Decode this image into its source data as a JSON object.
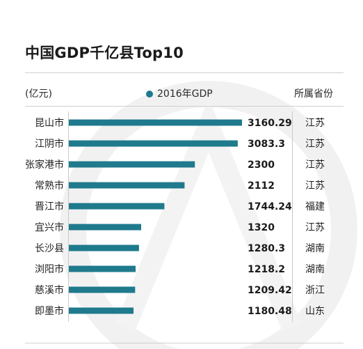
{
  "chart_data": {
    "type": "bar",
    "orientation": "horizontal",
    "title": "中国GDP千亿县Top10",
    "unit_label": "(亿元)",
    "legend": "2016年GDP",
    "right_header": "所属省份",
    "categories": [
      "昆山市",
      "江阴市",
      "张家港市",
      "常熟市",
      "晋江市",
      "宜兴市",
      "长沙县",
      "浏阳市",
      "慈溪市",
      "即墨市"
    ],
    "value_labels": [
      "3160.29",
      "3083.3",
      "2300",
      "2112",
      "1744.24",
      "1320",
      "1280.3",
      "1218.2",
      "1209.42",
      "1180.48"
    ],
    "values": [
      3160.29,
      3083.3,
      2300,
      2112,
      1744.24,
      1320,
      1280.3,
      1218.2,
      1209.42,
      1180.48
    ],
    "provinces": [
      "江苏",
      "江苏",
      "江苏",
      "江苏",
      "福建",
      "江苏",
      "湖南",
      "湖南",
      "浙江",
      "山东"
    ],
    "xlim": [
      0,
      3160.29
    ],
    "grid": false,
    "bar_color": "#1e7a8c"
  }
}
